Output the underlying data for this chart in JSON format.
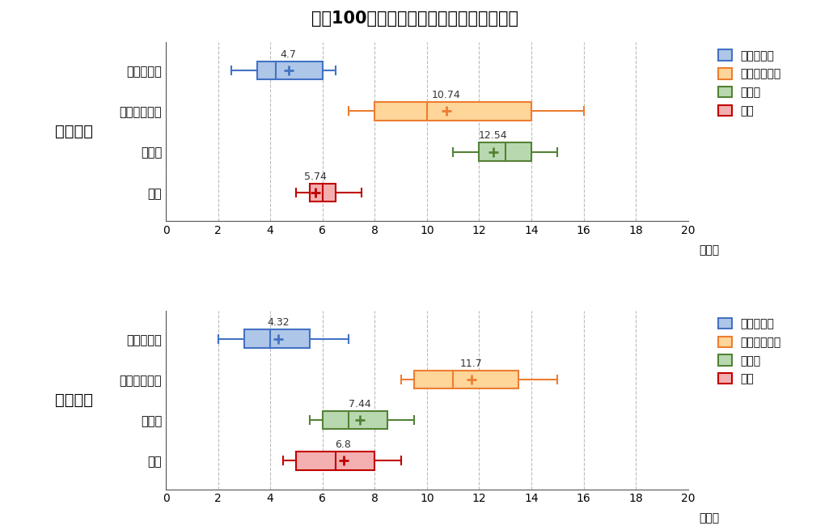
{
  "title": "生徒100名あたりの国公立の合格実績比較",
  "school_labels": [
    "土浦一高",
    "水戸一高"
  ],
  "categories": [
    "東大・京大",
    "他旧帝＆一工",
    "筑横千",
    "茨大"
  ],
  "legend_categories": [
    "東大・京大",
    "他旧帝＆一工",
    "筑横千",
    "茨大"
  ],
  "legend_labels": [
    "東大・京大",
    "他旧帝＆一工",
    "筑横千",
    "茨大"
  ],
  "colors": {
    "東大・京大": {
      "face": "#aec6e8",
      "edge": "#4472c4"
    },
    "他旧帝＆一工": {
      "face": "#ffd699",
      "edge": "#ed7d31"
    },
    "筑横千": {
      "face": "#b8d9b0",
      "edge": "#548235"
    },
    "茨大": {
      "face": "#f4b0b0",
      "edge": "#c00000"
    }
  },
  "xlim": [
    0,
    20
  ],
  "xticks": [
    0,
    2,
    4,
    6,
    8,
    10,
    12,
    14,
    16,
    18,
    20
  ],
  "xlabel": "（人）",
  "tsuchiura": {
    "東大・京大": {
      "mean": 4.7,
      "whislo": 2.5,
      "q1": 3.5,
      "med": 4.2,
      "q3": 6.0,
      "whishi": 6.5
    },
    "他旧帝＆一工": {
      "mean": 10.74,
      "whislo": 7.0,
      "q1": 8.0,
      "med": 10.0,
      "q3": 14.0,
      "whishi": 16.0
    },
    "筑横千": {
      "mean": 12.54,
      "whislo": 11.0,
      "q1": 12.0,
      "med": 13.0,
      "q3": 14.0,
      "whishi": 15.0
    },
    "茨大": {
      "mean": 5.74,
      "whislo": 5.0,
      "q1": 5.5,
      "med": 6.0,
      "q3": 6.5,
      "whishi": 7.5
    }
  },
  "mito": {
    "東大・京大": {
      "mean": 4.32,
      "whislo": 2.0,
      "q1": 3.0,
      "med": 4.0,
      "q3": 5.5,
      "whishi": 7.0
    },
    "他旧帝＆一工": {
      "mean": 11.7,
      "whislo": 9.0,
      "q1": 9.5,
      "med": 11.0,
      "q3": 13.5,
      "whishi": 15.0
    },
    "筑横千": {
      "mean": 7.44,
      "whislo": 5.5,
      "q1": 6.0,
      "med": 7.0,
      "q3": 8.5,
      "whishi": 9.5
    },
    "茨大": {
      "mean": 6.8,
      "whislo": 4.5,
      "q1": 5.0,
      "med": 6.5,
      "q3": 8.0,
      "whishi": 9.0
    }
  }
}
